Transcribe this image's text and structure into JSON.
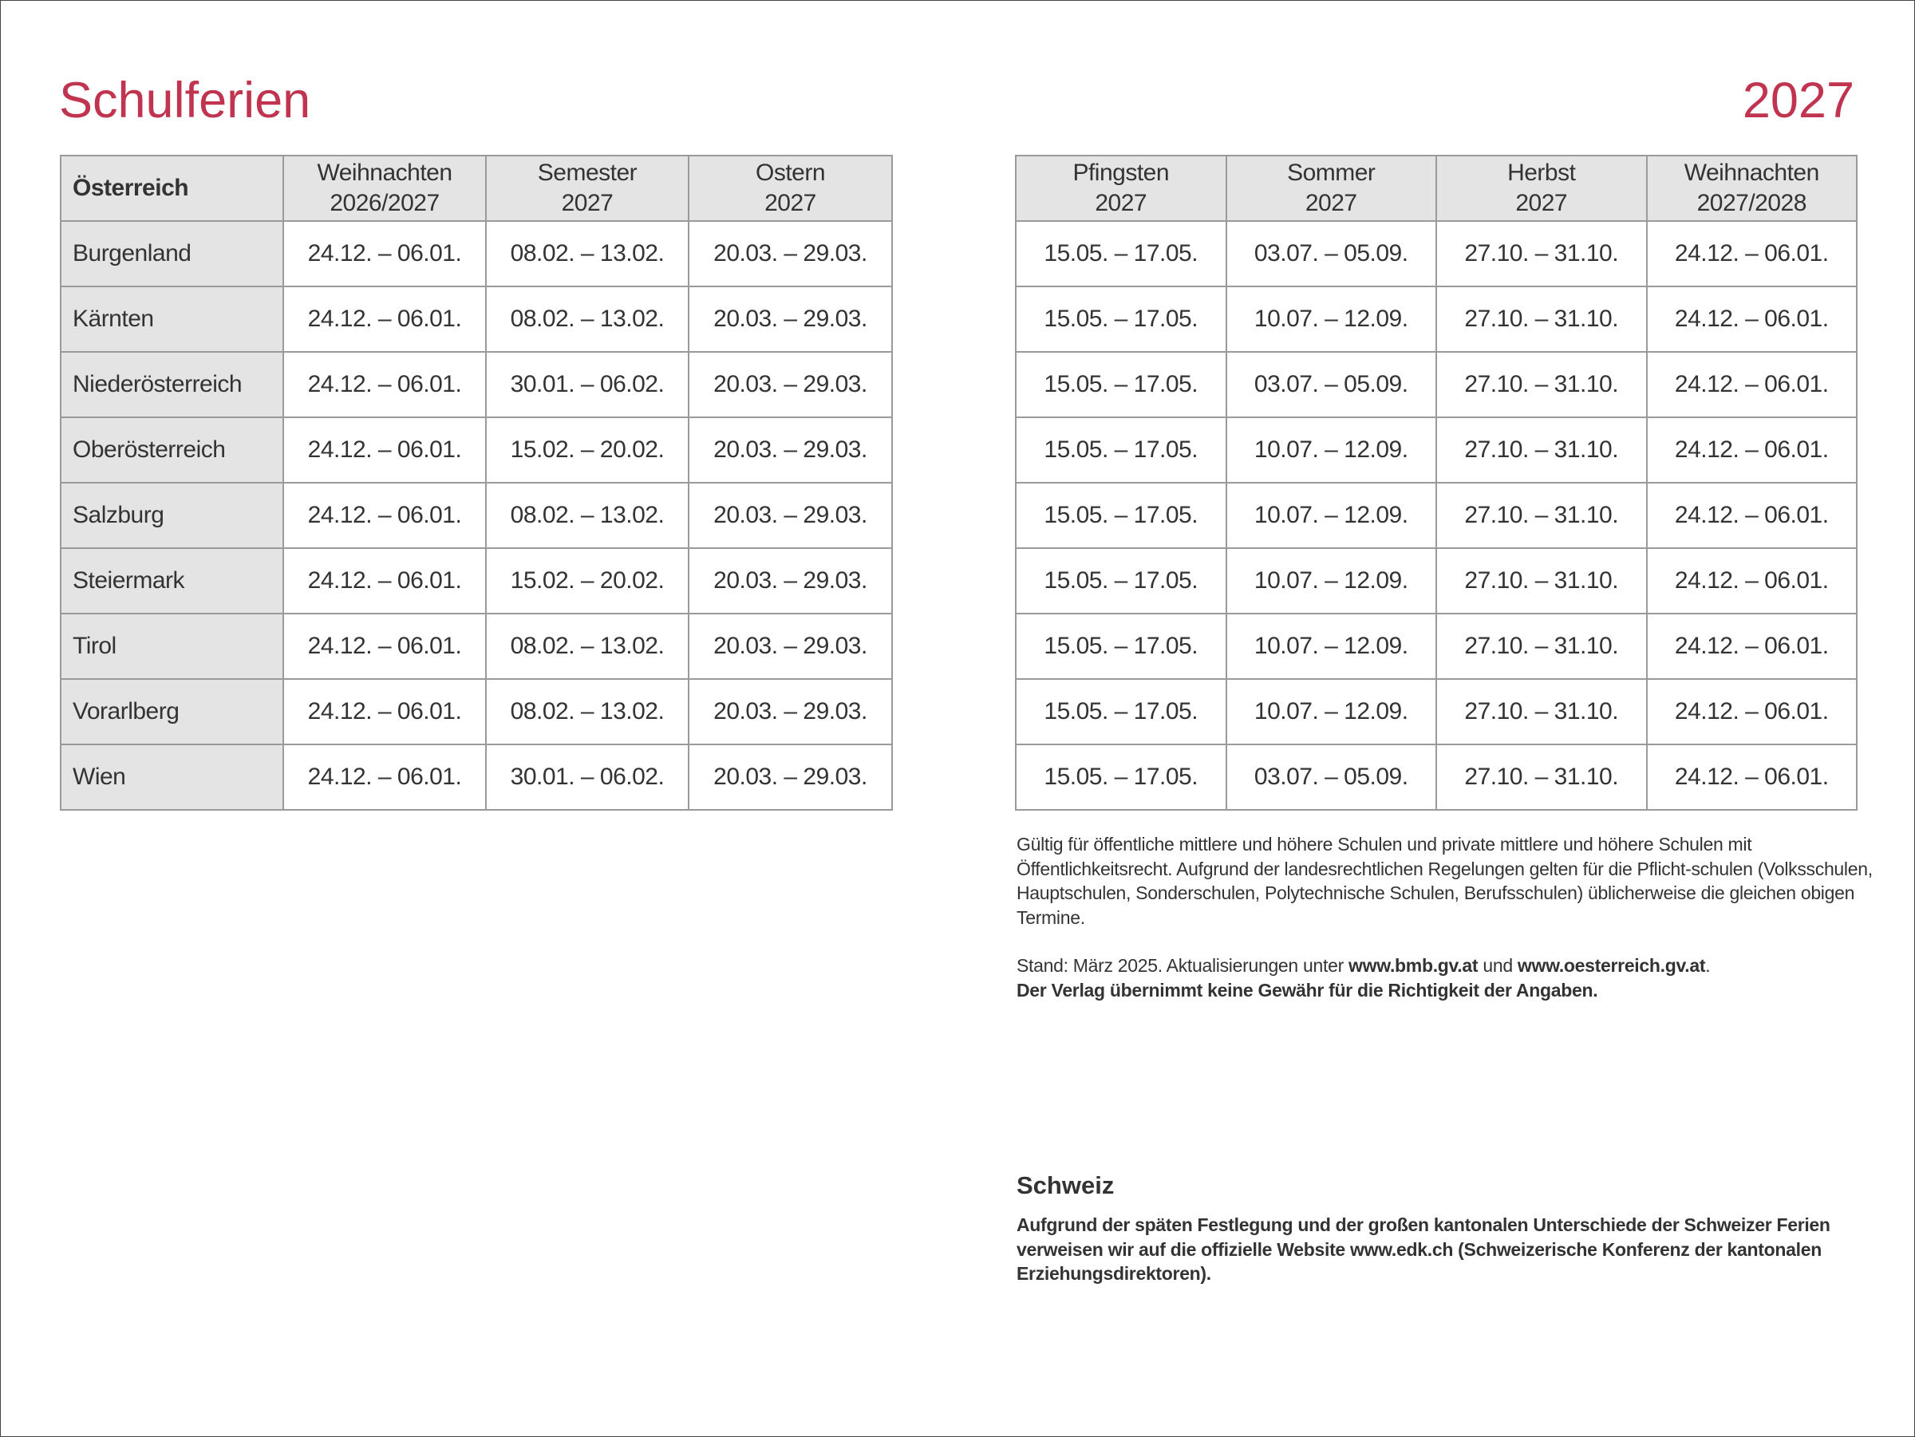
{
  "header": {
    "title": "Schulferien",
    "year": "2027"
  },
  "colors": {
    "title": "#c0344f",
    "header_bg": "#e4e4e4",
    "grid": "#9a9a9a"
  },
  "austria_table": {
    "corner": "Österreich",
    "left_columns": [
      {
        "line1": "Weihnachten",
        "line2": "2026/2027"
      },
      {
        "line1": "Semester",
        "line2": "2027"
      },
      {
        "line1": "Ostern",
        "line2": "2027"
      }
    ],
    "right_columns": [
      {
        "line1": "Pfingsten",
        "line2": "2027"
      },
      {
        "line1": "Sommer",
        "line2": "2027"
      },
      {
        "line1": "Herbst",
        "line2": "2027"
      },
      {
        "line1": "Weihnachten",
        "line2": "2027/2028"
      }
    ],
    "rows": [
      {
        "state": "Burgenland",
        "left": [
          "24.12. – 06.01.",
          "08.02. – 13.02.",
          "20.03. – 29.03."
        ],
        "right": [
          "15.05. – 17.05.",
          "03.07. – 05.09.",
          "27.10. – 31.10.",
          "24.12. – 06.01."
        ]
      },
      {
        "state": "Kärnten",
        "left": [
          "24.12. – 06.01.",
          "08.02. – 13.02.",
          "20.03. – 29.03."
        ],
        "right": [
          "15.05. – 17.05.",
          "10.07. – 12.09.",
          "27.10. – 31.10.",
          "24.12. – 06.01."
        ]
      },
      {
        "state": "Niederösterreich",
        "left": [
          "24.12. – 06.01.",
          "30.01. – 06.02.",
          "20.03. – 29.03."
        ],
        "right": [
          "15.05. – 17.05.",
          "03.07. – 05.09.",
          "27.10. – 31.10.",
          "24.12. – 06.01."
        ]
      },
      {
        "state": "Oberösterreich",
        "left": [
          "24.12. – 06.01.",
          "15.02. – 20.02.",
          "20.03. – 29.03."
        ],
        "right": [
          "15.05. – 17.05.",
          "10.07. – 12.09.",
          "27.10. – 31.10.",
          "24.12. – 06.01."
        ]
      },
      {
        "state": "Salzburg",
        "left": [
          "24.12. – 06.01.",
          "08.02. – 13.02.",
          "20.03. – 29.03."
        ],
        "right": [
          "15.05. – 17.05.",
          "10.07. – 12.09.",
          "27.10. – 31.10.",
          "24.12. – 06.01."
        ]
      },
      {
        "state": "Steiermark",
        "left": [
          "24.12. – 06.01.",
          "15.02. – 20.02.",
          "20.03. – 29.03."
        ],
        "right": [
          "15.05. – 17.05.",
          "10.07. – 12.09.",
          "27.10. – 31.10.",
          "24.12. – 06.01."
        ]
      },
      {
        "state": "Tirol",
        "left": [
          "24.12. – 06.01.",
          "08.02. – 13.02.",
          "20.03. – 29.03."
        ],
        "right": [
          "15.05. – 17.05.",
          "10.07. – 12.09.",
          "27.10. – 31.10.",
          "24.12. – 06.01."
        ]
      },
      {
        "state": "Vorarlberg",
        "left": [
          "24.12. – 06.01.",
          "08.02. – 13.02.",
          "20.03. – 29.03."
        ],
        "right": [
          "15.05. – 17.05.",
          "10.07. – 12.09.",
          "27.10. – 31.10.",
          "24.12. – 06.01."
        ]
      },
      {
        "state": "Wien",
        "left": [
          "24.12. – 06.01.",
          "30.01. – 06.02.",
          "20.03. – 29.03."
        ],
        "right": [
          "15.05. – 17.05.",
          "03.07. – 05.09.",
          "27.10. – 31.10.",
          "24.12. – 06.01."
        ]
      }
    ]
  },
  "notes": {
    "validity": "Gültig für öffentliche mittlere und höhere Schulen und private mittlere und höhere Schulen mit Öffentlichkeitsrecht. Aufgrund der landesrechtlichen Regelungen gelten für die Pflicht-schulen (Volksschulen, Hauptschulen, Sonderschulen, Polytechnische Schulen, Berufsschulen) üblicherweise die gleichen obigen Termine.",
    "stand_prefix": "Stand: März 2025. Aktualisierungen unter ",
    "link1": "www.bmb.gv.at",
    "and": " und ",
    "link2": "www.oesterreich.gv.at",
    "period": ".",
    "disclaimer": "Der Verlag übernimmt keine Gewähr für die Richtigkeit der Angaben."
  },
  "switzerland": {
    "heading": "Schweiz",
    "text": "Aufgrund der späten Festlegung und der großen kantonalen Unterschiede der Schweizer Ferien verweisen wir auf die offizielle Website www.edk.ch (Schweizerische Konferenz der kantonalen Erziehungsdirektoren)."
  }
}
